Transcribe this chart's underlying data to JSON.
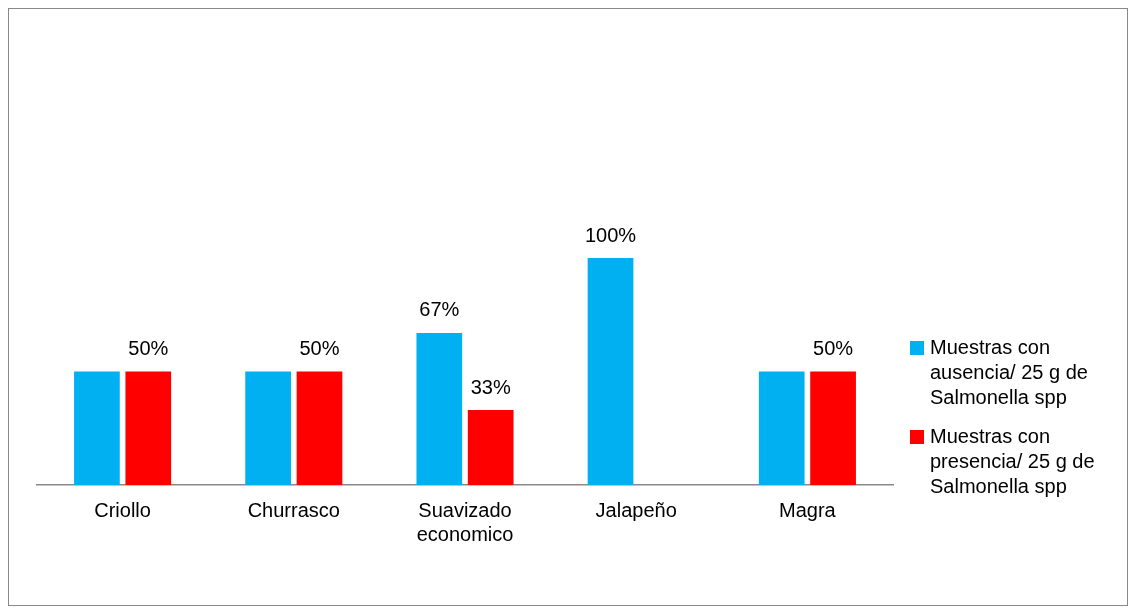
{
  "chart_data": {
    "type": "bar",
    "categories": [
      "Criollo",
      "Churrasco",
      "Suavizado economico",
      "Jalapeño",
      "Magra"
    ],
    "series": [
      {
        "name": "Muestras con ausencia/ 25 g de Salmonella spp",
        "color": "#00b0f0",
        "values": [
          50,
          50,
          67,
          100,
          50
        ],
        "value_labels": [
          null,
          null,
          "67%",
          "100%",
          null
        ]
      },
      {
        "name": "Muestras con presencia/ 25 g de Salmonella spp",
        "color": "#ff0000",
        "values": [
          50,
          50,
          33,
          0,
          50
        ],
        "value_labels": [
          "50%",
          "50%",
          "33%",
          null,
          "50%"
        ]
      }
    ],
    "legend": "right",
    "grid": false
  }
}
